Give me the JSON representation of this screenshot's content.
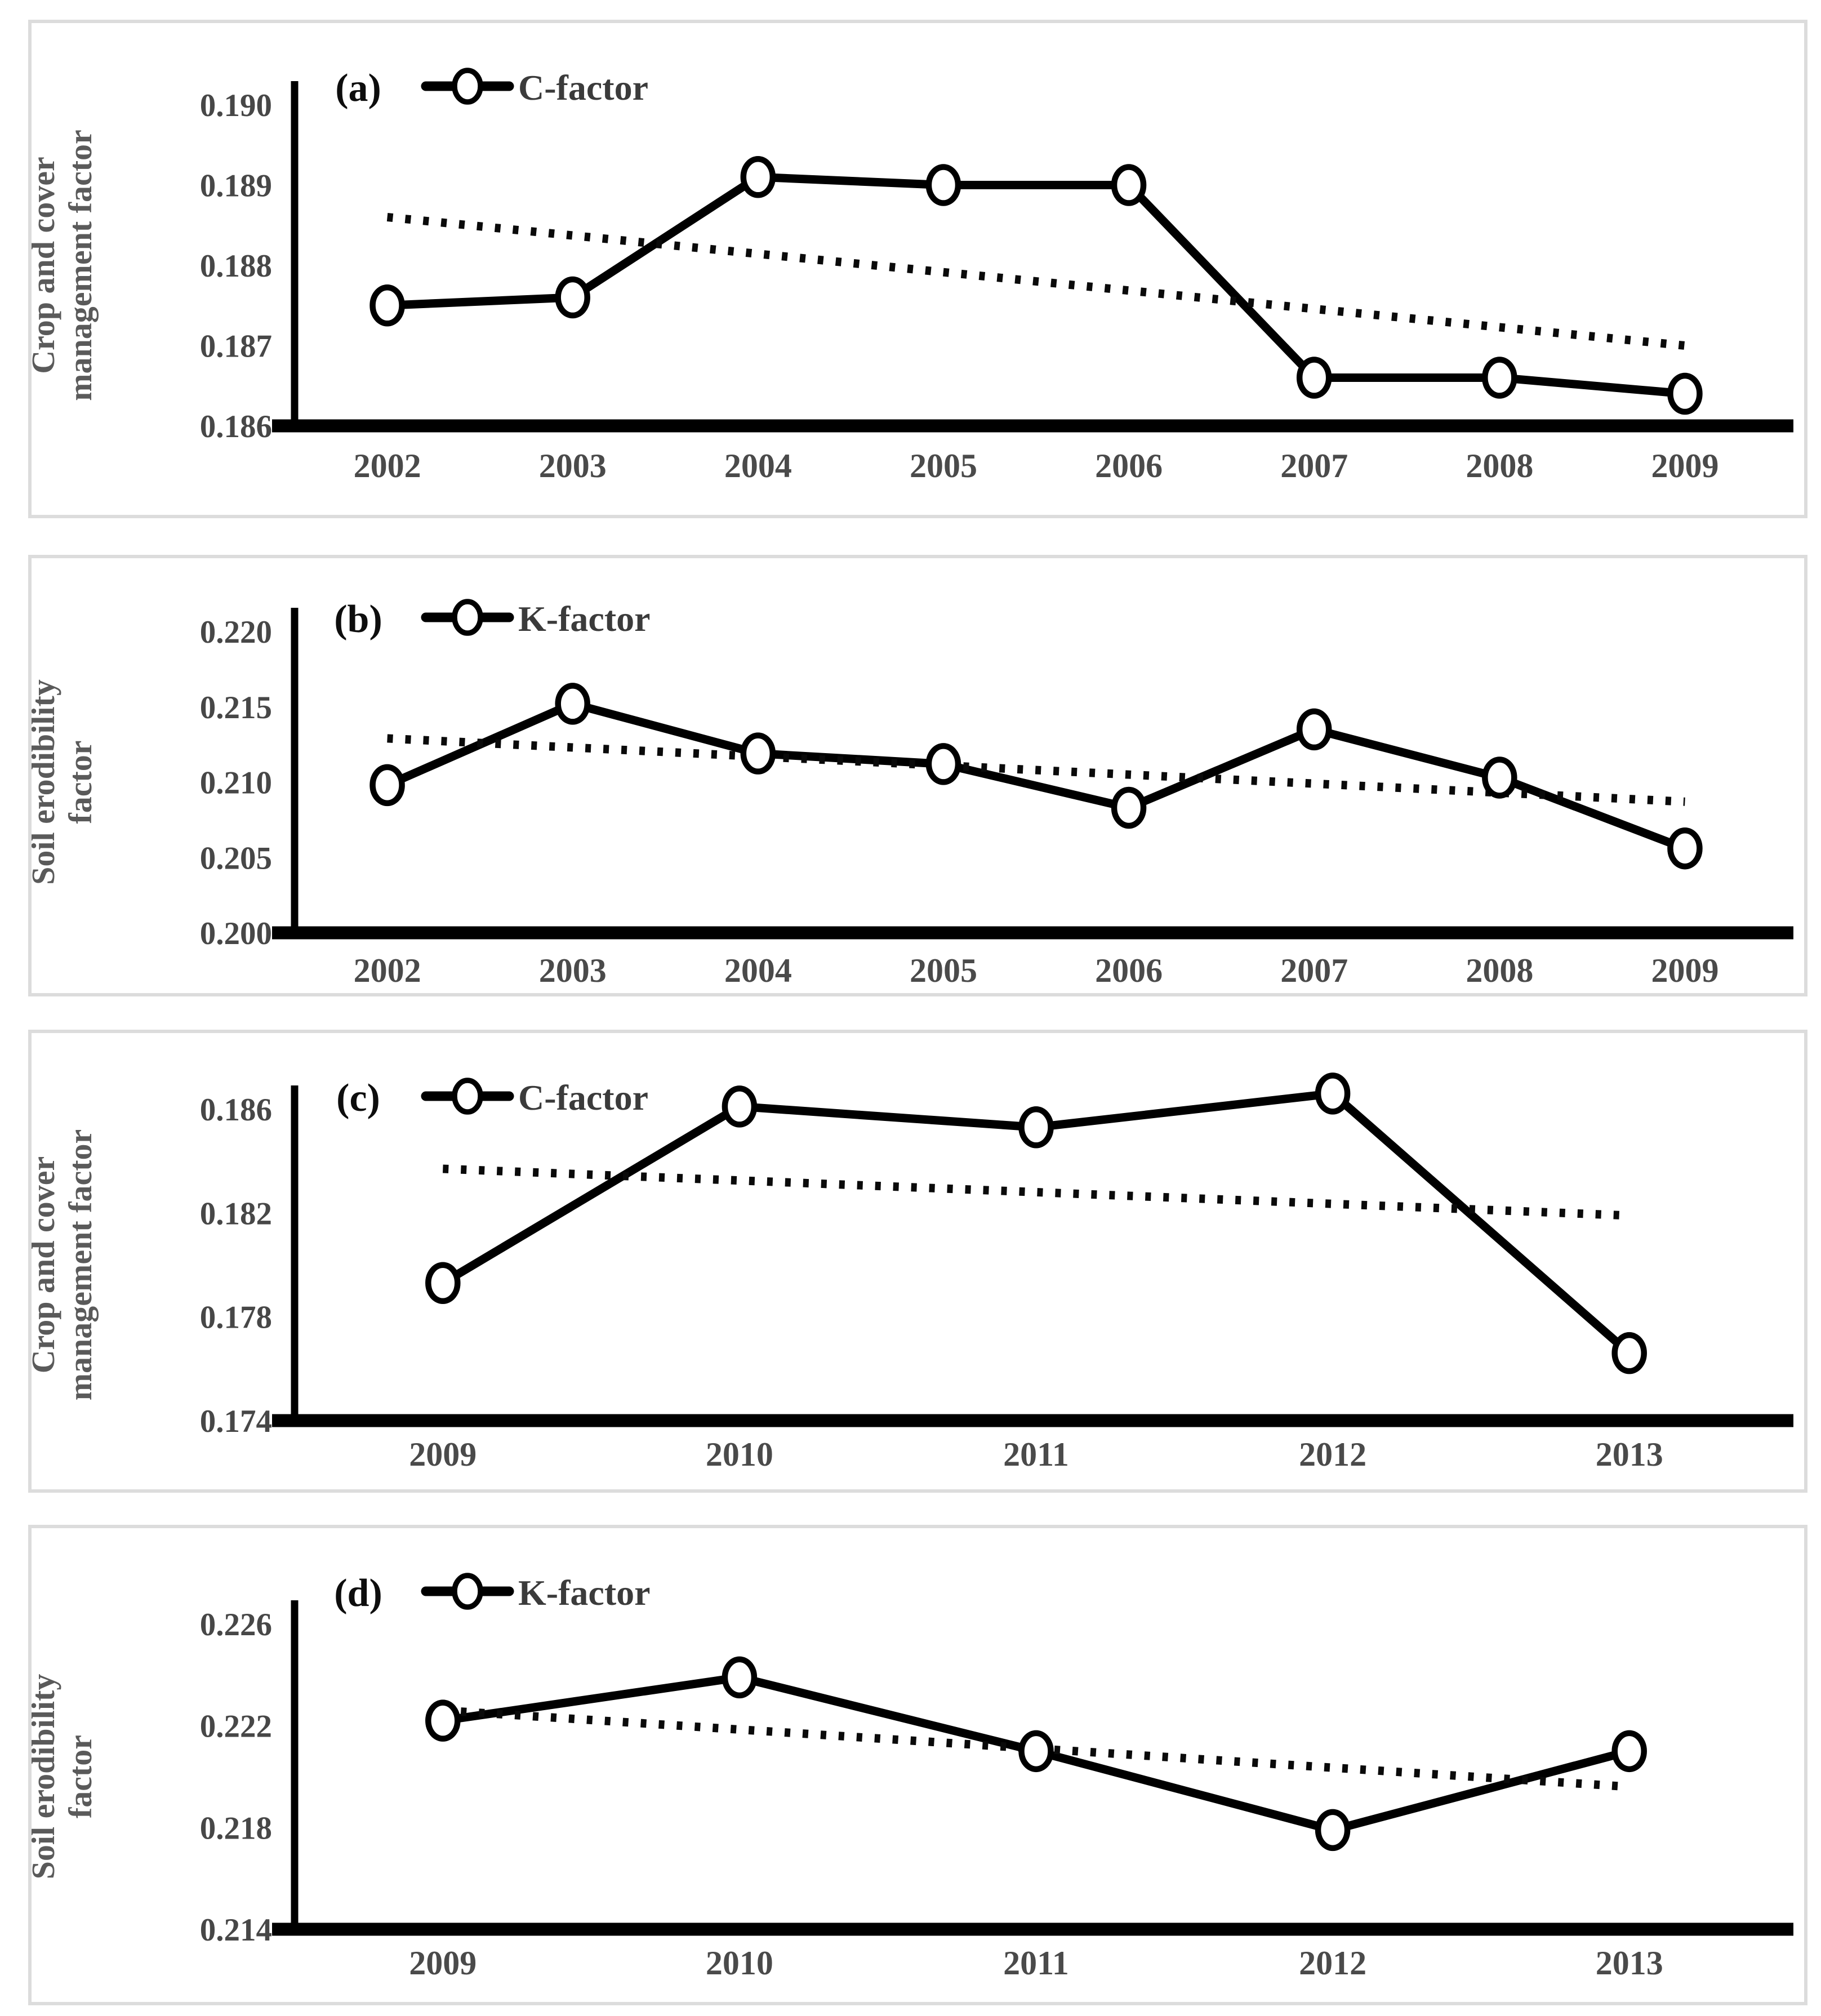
{
  "page": {
    "background": "#ffffff",
    "panel_border_color": "#dcdcdc"
  },
  "colors": {
    "series_line": "#000000",
    "trend_line": "#0a0a0a",
    "marker_fill": "#ffffff",
    "marker_stroke": "#000000",
    "axis_line": "#000000",
    "tick_label": "#474747",
    "year_label": "#4a4a4a",
    "axis_title": "#5a5a5a",
    "legend_letter": "#0d0d0d",
    "legend_text": "#3b3b3b"
  },
  "chart_data": [
    {
      "type": "line",
      "panel_label": "(a)",
      "legend": {
        "label": "C-factor",
        "marker": "open-circle-on-thick-line",
        "position": "top-left"
      },
      "ylabel": "Crop and cover management factor",
      "ylabel_lines": [
        "Crop and cover",
        "management factor"
      ],
      "categories": [
        "2002",
        "2003",
        "2004",
        "2005",
        "2006",
        "2007",
        "2008",
        "2009"
      ],
      "series": [
        {
          "name": "C-factor",
          "values": [
            0.1875,
            0.1876,
            0.1891,
            0.189,
            0.189,
            0.1866,
            0.1866,
            0.1864
          ]
        }
      ],
      "trendline": {
        "style": "dotted-linear",
        "start": 0.1886,
        "end": 0.187
      },
      "yticks": [
        "0.186",
        "0.187",
        "0.188",
        "0.189",
        "0.190"
      ],
      "ylim": [
        0.186,
        0.19
      ],
      "grid": false
    },
    {
      "type": "line",
      "panel_label": "(b)",
      "legend": {
        "label": "K-factor",
        "marker": "open-circle-on-thick-line",
        "position": "top-left"
      },
      "ylabel": "Soil erodibility factor",
      "ylabel_lines": [
        "Soil erodibility",
        "factor"
      ],
      "categories": [
        "2002",
        "2003",
        "2004",
        "2005",
        "2006",
        "2007",
        "2008",
        "2009"
      ],
      "series": [
        {
          "name": "K-factor",
          "values": [
            0.2098,
            0.2152,
            0.2119,
            0.2112,
            0.2083,
            0.2135,
            0.2103,
            0.2056
          ]
        }
      ],
      "trendline": {
        "style": "dotted-linear",
        "start": 0.2129,
        "end": 0.2087
      },
      "yticks": [
        "0.200",
        "0.205",
        "0.210",
        "0.215",
        "0.220"
      ],
      "ylim": [
        0.2,
        0.22
      ],
      "grid": false
    },
    {
      "type": "line",
      "panel_label": "(c)",
      "legend": {
        "label": "C-factor",
        "marker": "open-circle-on-thick-line",
        "position": "top-left"
      },
      "ylabel": "Crop and cover management factor",
      "ylabel_lines": [
        "Crop and cover",
        "management factor"
      ],
      "categories": [
        "2009",
        "2010",
        "2011",
        "2012",
        "2013"
      ],
      "series": [
        {
          "name": "C-factor",
          "values": [
            0.1793,
            0.1861,
            0.1853,
            0.1866,
            0.1766
          ]
        }
      ],
      "trendline": {
        "style": "dotted-linear",
        "start": 0.1837,
        "end": 0.1819
      },
      "yticks": [
        "0.174",
        "0.178",
        "0.182",
        "0.186"
      ],
      "ylim": [
        0.174,
        0.186
      ],
      "grid": false
    },
    {
      "type": "line",
      "panel_label": "(d)",
      "legend": {
        "label": "K-factor",
        "marker": "open-circle-on-thick-line",
        "position": "top-left"
      },
      "ylabel": "Soil erodibility factor",
      "ylabel_lines": [
        "Soil erodibility",
        "factor"
      ],
      "categories": [
        "2009",
        "2010",
        "2011",
        "2012",
        "2013"
      ],
      "series": [
        {
          "name": "K-factor",
          "values": [
            0.2222,
            0.2239,
            0.221,
            0.2179,
            0.221
          ]
        }
      ],
      "trendline": {
        "style": "dotted-linear",
        "start": 0.2226,
        "end": 0.2196
      },
      "yticks": [
        "0.214",
        "0.218",
        "0.222",
        "0.226"
      ],
      "ylim": [
        0.214,
        0.226
      ],
      "grid": false
    }
  ]
}
